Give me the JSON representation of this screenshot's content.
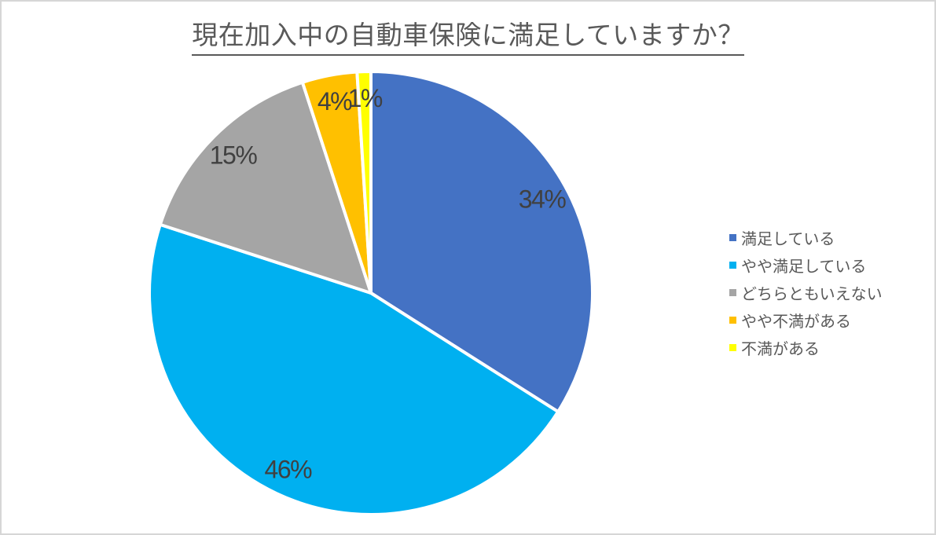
{
  "chart_data": {
    "type": "pie",
    "title": "現在加入中の自動車保険に満足していますか？",
    "categories": [
      "満足している",
      "やや満足している",
      "どちらともいえない",
      "やや不満がある",
      "不満がある"
    ],
    "values": [
      34,
      46,
      15,
      4,
      1
    ],
    "labels": [
      "34%",
      "46%",
      "15%",
      "4%",
      "1%"
    ],
    "colors": [
      "#4472C4",
      "#00B0F0",
      "#A5A5A5",
      "#FFC000",
      "#FFFF00"
    ],
    "start_angle_deg": 0,
    "direction": "clockwise",
    "legend_position": "right",
    "slice_border_color": "#FFFFFF",
    "label_color": "#404040",
    "title_color": "#595959",
    "legend_text_color": "#595959",
    "background_color": "#FFFFFF",
    "page_border_color": "#D6D6D6"
  }
}
